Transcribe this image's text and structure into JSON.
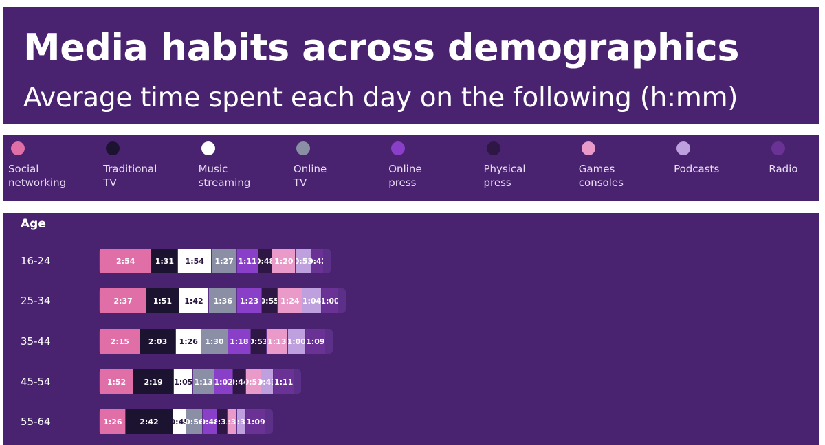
{
  "header": {
    "title": "Media habits across demographics",
    "subtitle": "Average time spent each day on the following (h:mm)"
  },
  "colors": {
    "background": "#4a2370",
    "track": "#5c2f88",
    "Social networking": "#e06fa8",
    "Traditional TV": "#1c1330",
    "Music streaming": "#ffffff",
    "Online TV": "#8a8fa6",
    "Online press": "#8a3fc8",
    "Physical press": "#2e1645",
    "Games consoles": "#e99ac8",
    "Podcasts": "#bfa0de",
    "Radio": "#6b3296"
  },
  "chart_data": {
    "type": "bar",
    "orientation": "horizontal",
    "stacked": true,
    "title": "Media habits across demographics",
    "subtitle": "Average time spent each day on the following (h:mm)",
    "ylabel": "Age",
    "categories": [
      "16-24",
      "25-34",
      "35-44",
      "45-54",
      "55-64"
    ],
    "legend": {
      "position": "top",
      "entries": [
        "Social\nnetworking",
        "Traditional\nTV",
        "Music\nstreaming",
        "Online\nTV",
        "Online\npress",
        "Physical\npress",
        "Games\nconsoles",
        "Podcasts",
        "Radio"
      ]
    },
    "series": [
      {
        "name": "Social networking",
        "values": [
          "2:54",
          "2:37",
          "2:15",
          "1:52",
          "1:26"
        ]
      },
      {
        "name": "Traditional TV",
        "values": [
          "1:31",
          "1:51",
          "2:03",
          "2:19",
          "2:42"
        ]
      },
      {
        "name": "Music streaming",
        "values": [
          "1:54",
          "1:42",
          "1:26",
          "1:05",
          "0:45"
        ]
      },
      {
        "name": "Online TV",
        "values": [
          "1:27",
          "1:36",
          "1:30",
          "1:13",
          "0:56"
        ]
      },
      {
        "name": "Online press",
        "values": [
          "1:11",
          "1:23",
          "1:18",
          "1:02",
          "0:48"
        ]
      },
      {
        "name": "Physical press",
        "values": [
          "0:48",
          "0:55",
          "0:53",
          "0:44",
          "0:35"
        ]
      },
      {
        "name": "Games consoles",
        "values": [
          "1:20",
          "1:24",
          "1:13",
          "0:51",
          "0:33"
        ]
      },
      {
        "name": "Podcasts",
        "values": [
          "0:53",
          "1:04",
          "1:00",
          "0:43",
          "0:30"
        ]
      },
      {
        "name": "Radio",
        "values": [
          "0:42",
          "1:00",
          "1:09",
          "1:11",
          "1:09"
        ]
      }
    ]
  }
}
